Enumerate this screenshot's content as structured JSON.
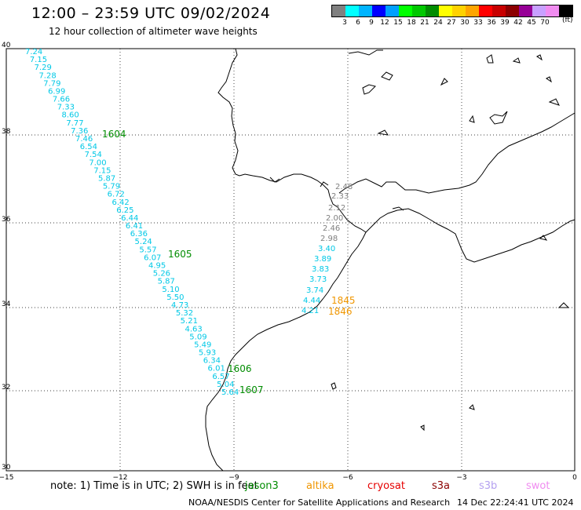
{
  "header": {
    "title": "12:00 – 23:59 UTC 09/02/2024",
    "subtitle": "12 hour collection of altimeter wave heights"
  },
  "legend": {
    "colors": [
      "#808080",
      "#00ffff",
      "#00b4ff",
      "#0000ff",
      "#00a0ff",
      "#00ff00",
      "#00c800",
      "#008c00",
      "#ffff00",
      "#ffd200",
      "#ffa500",
      "#ff0000",
      "#c80000",
      "#8c0000",
      "#960096",
      "#c8a0ff",
      "#f08cf0",
      "#000000"
    ],
    "ticks": [
      "3",
      "6",
      "9",
      "12",
      "15",
      "18",
      "21",
      "24",
      "27",
      "30",
      "33",
      "36",
      "39",
      "42",
      "45",
      "70"
    ],
    "unit": "(ft)"
  },
  "map": {
    "x_ticks": [
      "−15",
      "−12",
      "−9",
      "−6",
      "−3",
      "0"
    ],
    "y_ticks": [
      "40",
      "38",
      "36",
      "34",
      "32",
      "30"
    ],
    "lon_range": [
      -15,
      0
    ],
    "lat_range": [
      30,
      40
    ]
  },
  "track_jason": {
    "color": "#00c8e6",
    "values": [
      "7.24",
      "7.15",
      "7.29",
      "7.28",
      "7.79",
      "6.99",
      "7.66",
      "7.33",
      "8.60",
      "7.77",
      "7.36",
      "7.46",
      "6.54",
      "7.54",
      "7.00",
      "7.15",
      "5.87",
      "5.79",
      "6.72",
      "6.42",
      "6.25",
      "6.44",
      "6.41",
      "6.36",
      "5.24",
      "5.57",
      "6.07",
      "4.95",
      "5.26",
      "5.87",
      "5.10",
      "5.50",
      "4.73",
      "5.32",
      "5.21",
      "4.63",
      "5.09",
      "5.49",
      "5.93",
      "6.34",
      "6.01",
      "6.57",
      "5.04",
      "5.64"
    ],
    "times": [
      {
        "label": "1604",
        "color": "#008c00"
      },
      {
        "label": "1605",
        "color": "#008c00"
      },
      {
        "label": "1606",
        "color": "#008c00"
      },
      {
        "label": "1607",
        "color": "#008c00"
      }
    ]
  },
  "track_altika": {
    "values_gray": [
      "2.48",
      "2.33",
      "2.12",
      "2.00",
      "2.46",
      "2.98"
    ],
    "values_cyan": [
      "3.40",
      "3.89",
      "3.83",
      "3.73",
      "3.74",
      "4.44",
      "4.21"
    ],
    "times": [
      {
        "label": "1845",
        "color": "#f09600"
      },
      {
        "label": "1846",
        "color": "#f09600"
      }
    ]
  },
  "footer": {
    "note": "note:  1) Time is in UTC; 2) SWH is in feet",
    "satellites": [
      {
        "name": "jason3",
        "color": "#008c00"
      },
      {
        "name": "altika",
        "color": "#f09600"
      },
      {
        "name": "cryosat",
        "color": "#e60000"
      },
      {
        "name": "s3a",
        "color": "#8c0000"
      },
      {
        "name": "s3b",
        "color": "#b4a0f0"
      },
      {
        "name": "swot",
        "color": "#f08cf0"
      }
    ],
    "credit": "NOAA/NESDIS Center for Satellite Applications and Research",
    "timestamp": "14 Dec 22:24:41 UTC 2024"
  }
}
